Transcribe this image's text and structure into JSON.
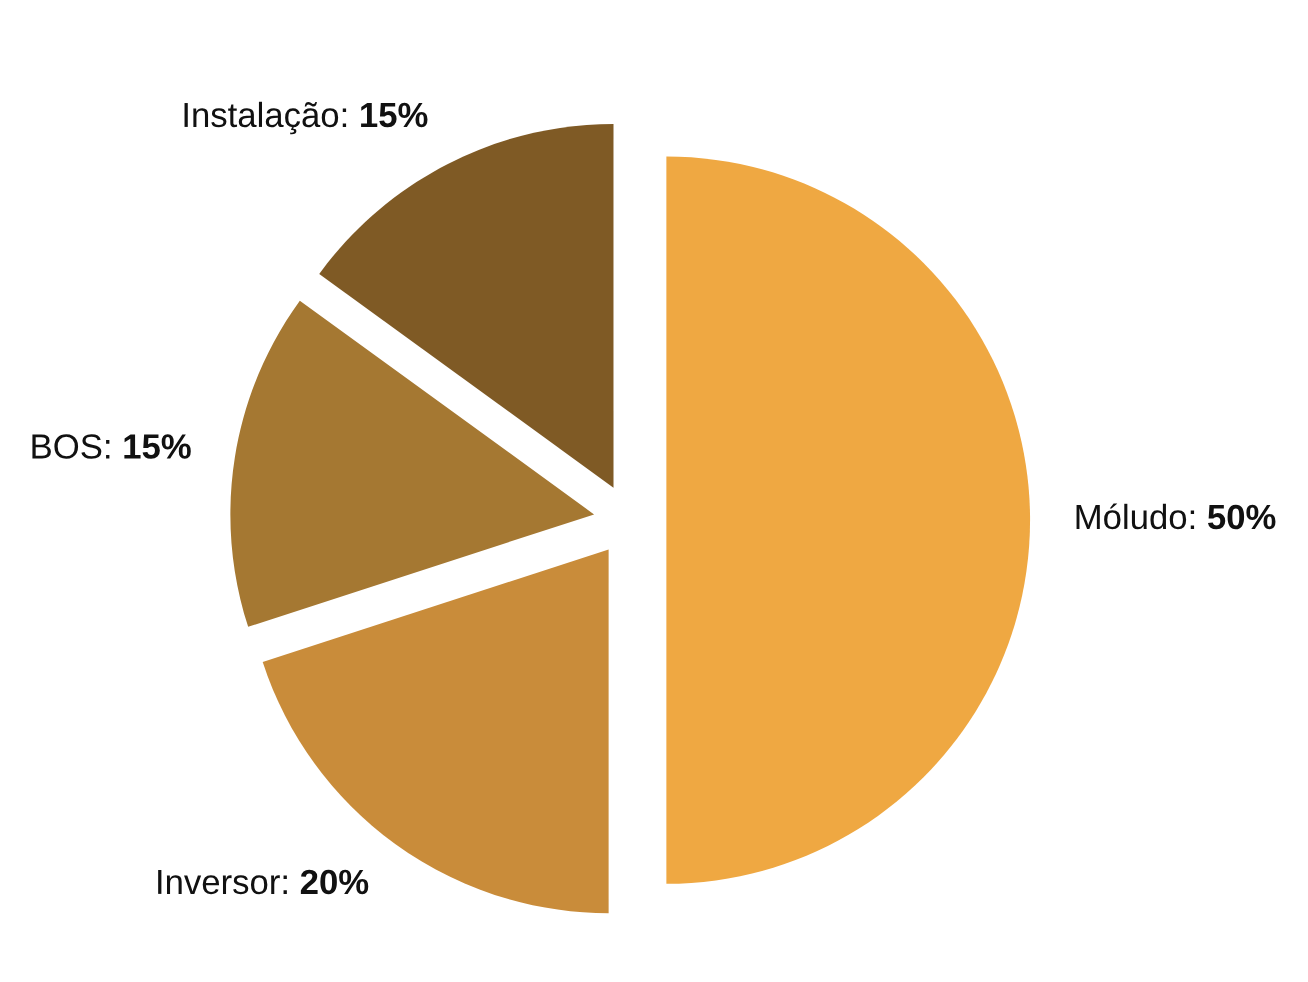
{
  "chart_data": {
    "type": "pie",
    "categories": [
      "Móludo",
      "Inversor",
      "BOS",
      "Instalação"
    ],
    "values": [
      50,
      20,
      15,
      15
    ],
    "value_labels": [
      "50%",
      "20%",
      "15%",
      "15%"
    ],
    "colors": [
      "#efa842",
      "#c98c3a",
      "#a57832",
      "#7f5a25"
    ]
  }
}
